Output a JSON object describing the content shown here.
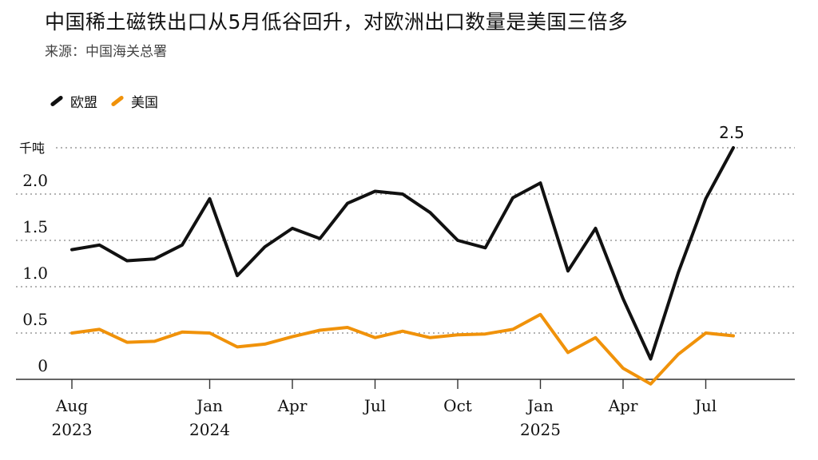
{
  "header": {
    "title": "中国稀土磁铁出口从5月低谷回升，对欧洲出口数量是美国三倍多",
    "source": "来源：中国海关总署"
  },
  "colors": {
    "eu": "#111111",
    "us": "#f0920a",
    "grid": "#9a9a9a",
    "axis": "#333333"
  },
  "chart_data": {
    "type": "line",
    "unit_label": "千吨",
    "y_ticks": [
      "0",
      "0.5",
      "1.0",
      "1.5",
      "2.0"
    ],
    "y_tick_values": [
      0,
      0.5,
      1.0,
      1.5,
      2.0
    ],
    "ylim": [
      0,
      2.5
    ],
    "x": [
      "2023-08",
      "2023-09",
      "2023-10",
      "2023-11",
      "2023-12",
      "2024-01",
      "2024-02",
      "2024-03",
      "2024-04",
      "2024-05",
      "2024-06",
      "2024-07",
      "2024-08",
      "2024-09",
      "2024-10",
      "2024-11",
      "2024-12",
      "2025-01",
      "2025-02",
      "2025-03",
      "2025-04",
      "2025-05",
      "2025-06",
      "2025-07",
      "2025-08",
      "2025-09"
    ],
    "x_tick_labels": [
      {
        "month": "Aug",
        "year": "2023",
        "index": 0
      },
      {
        "month": "Jan",
        "year": "2024",
        "index": 5
      },
      {
        "month": "Apr",
        "year": "",
        "index": 8
      },
      {
        "month": "Jul",
        "year": "",
        "index": 11
      },
      {
        "month": "Oct",
        "year": "",
        "index": 14
      },
      {
        "month": "Jan",
        "year": "2025",
        "index": 17
      },
      {
        "month": "Apr",
        "year": "",
        "index": 20
      },
      {
        "month": "Jul",
        "year": "",
        "index": 23
      }
    ],
    "series": [
      {
        "name": "欧盟",
        "key": "eu",
        "values": [
          1.4,
          1.45,
          1.28,
          1.3,
          1.45,
          1.95,
          1.12,
          1.43,
          1.63,
          1.52,
          1.9,
          2.03,
          2.0,
          1.8,
          1.5,
          1.42,
          1.96,
          2.12,
          1.17,
          1.63,
          0.87,
          0.22,
          1.15,
          1.95,
          2.5,
          null
        ],
        "end_label": "2.5"
      },
      {
        "name": "美国",
        "key": "us",
        "values": [
          0.5,
          0.54,
          0.4,
          0.41,
          0.51,
          0.5,
          0.35,
          0.38,
          0.46,
          0.53,
          0.56,
          0.45,
          0.52,
          0.45,
          0.48,
          0.49,
          0.54,
          0.7,
          0.29,
          0.45,
          0.12,
          -0.05,
          0.27,
          0.5,
          0.47,
          null
        ]
      }
    ],
    "grid": true,
    "legend_position": "top-left"
  }
}
